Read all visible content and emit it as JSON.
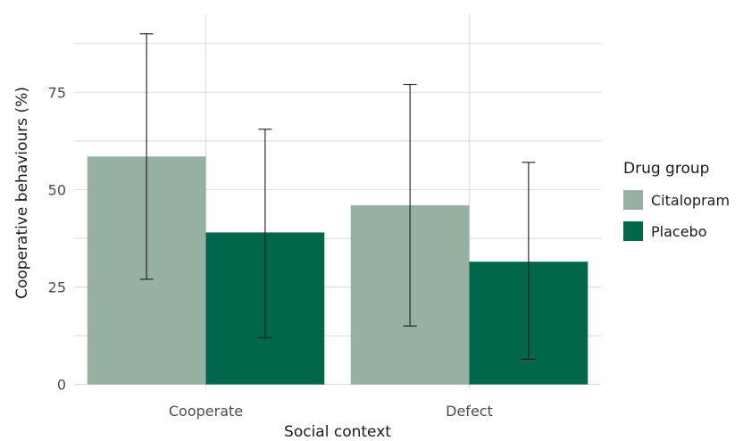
{
  "chart_data": {
    "type": "bar",
    "title": "",
    "xlabel": "Social context",
    "ylabel": "Cooperative behaviours (%)",
    "categories": [
      "Cooperate",
      "Defect"
    ],
    "ylim": [
      -1,
      95
    ],
    "yticks": [
      0,
      25,
      50,
      75
    ],
    "grid": true,
    "legend": {
      "title": "Drug group",
      "placement": "right"
    },
    "series": [
      {
        "name": "Citalopram",
        "color": "#96b1a1",
        "values": [
          58.5,
          46
        ],
        "error_low": [
          27,
          15
        ],
        "error_high": [
          90,
          77
        ]
      },
      {
        "name": "Placebo",
        "color": "#00674a",
        "values": [
          39,
          31.5
        ],
        "error_low": [
          12,
          6.5
        ],
        "error_high": [
          65.5,
          57
        ]
      }
    ]
  }
}
